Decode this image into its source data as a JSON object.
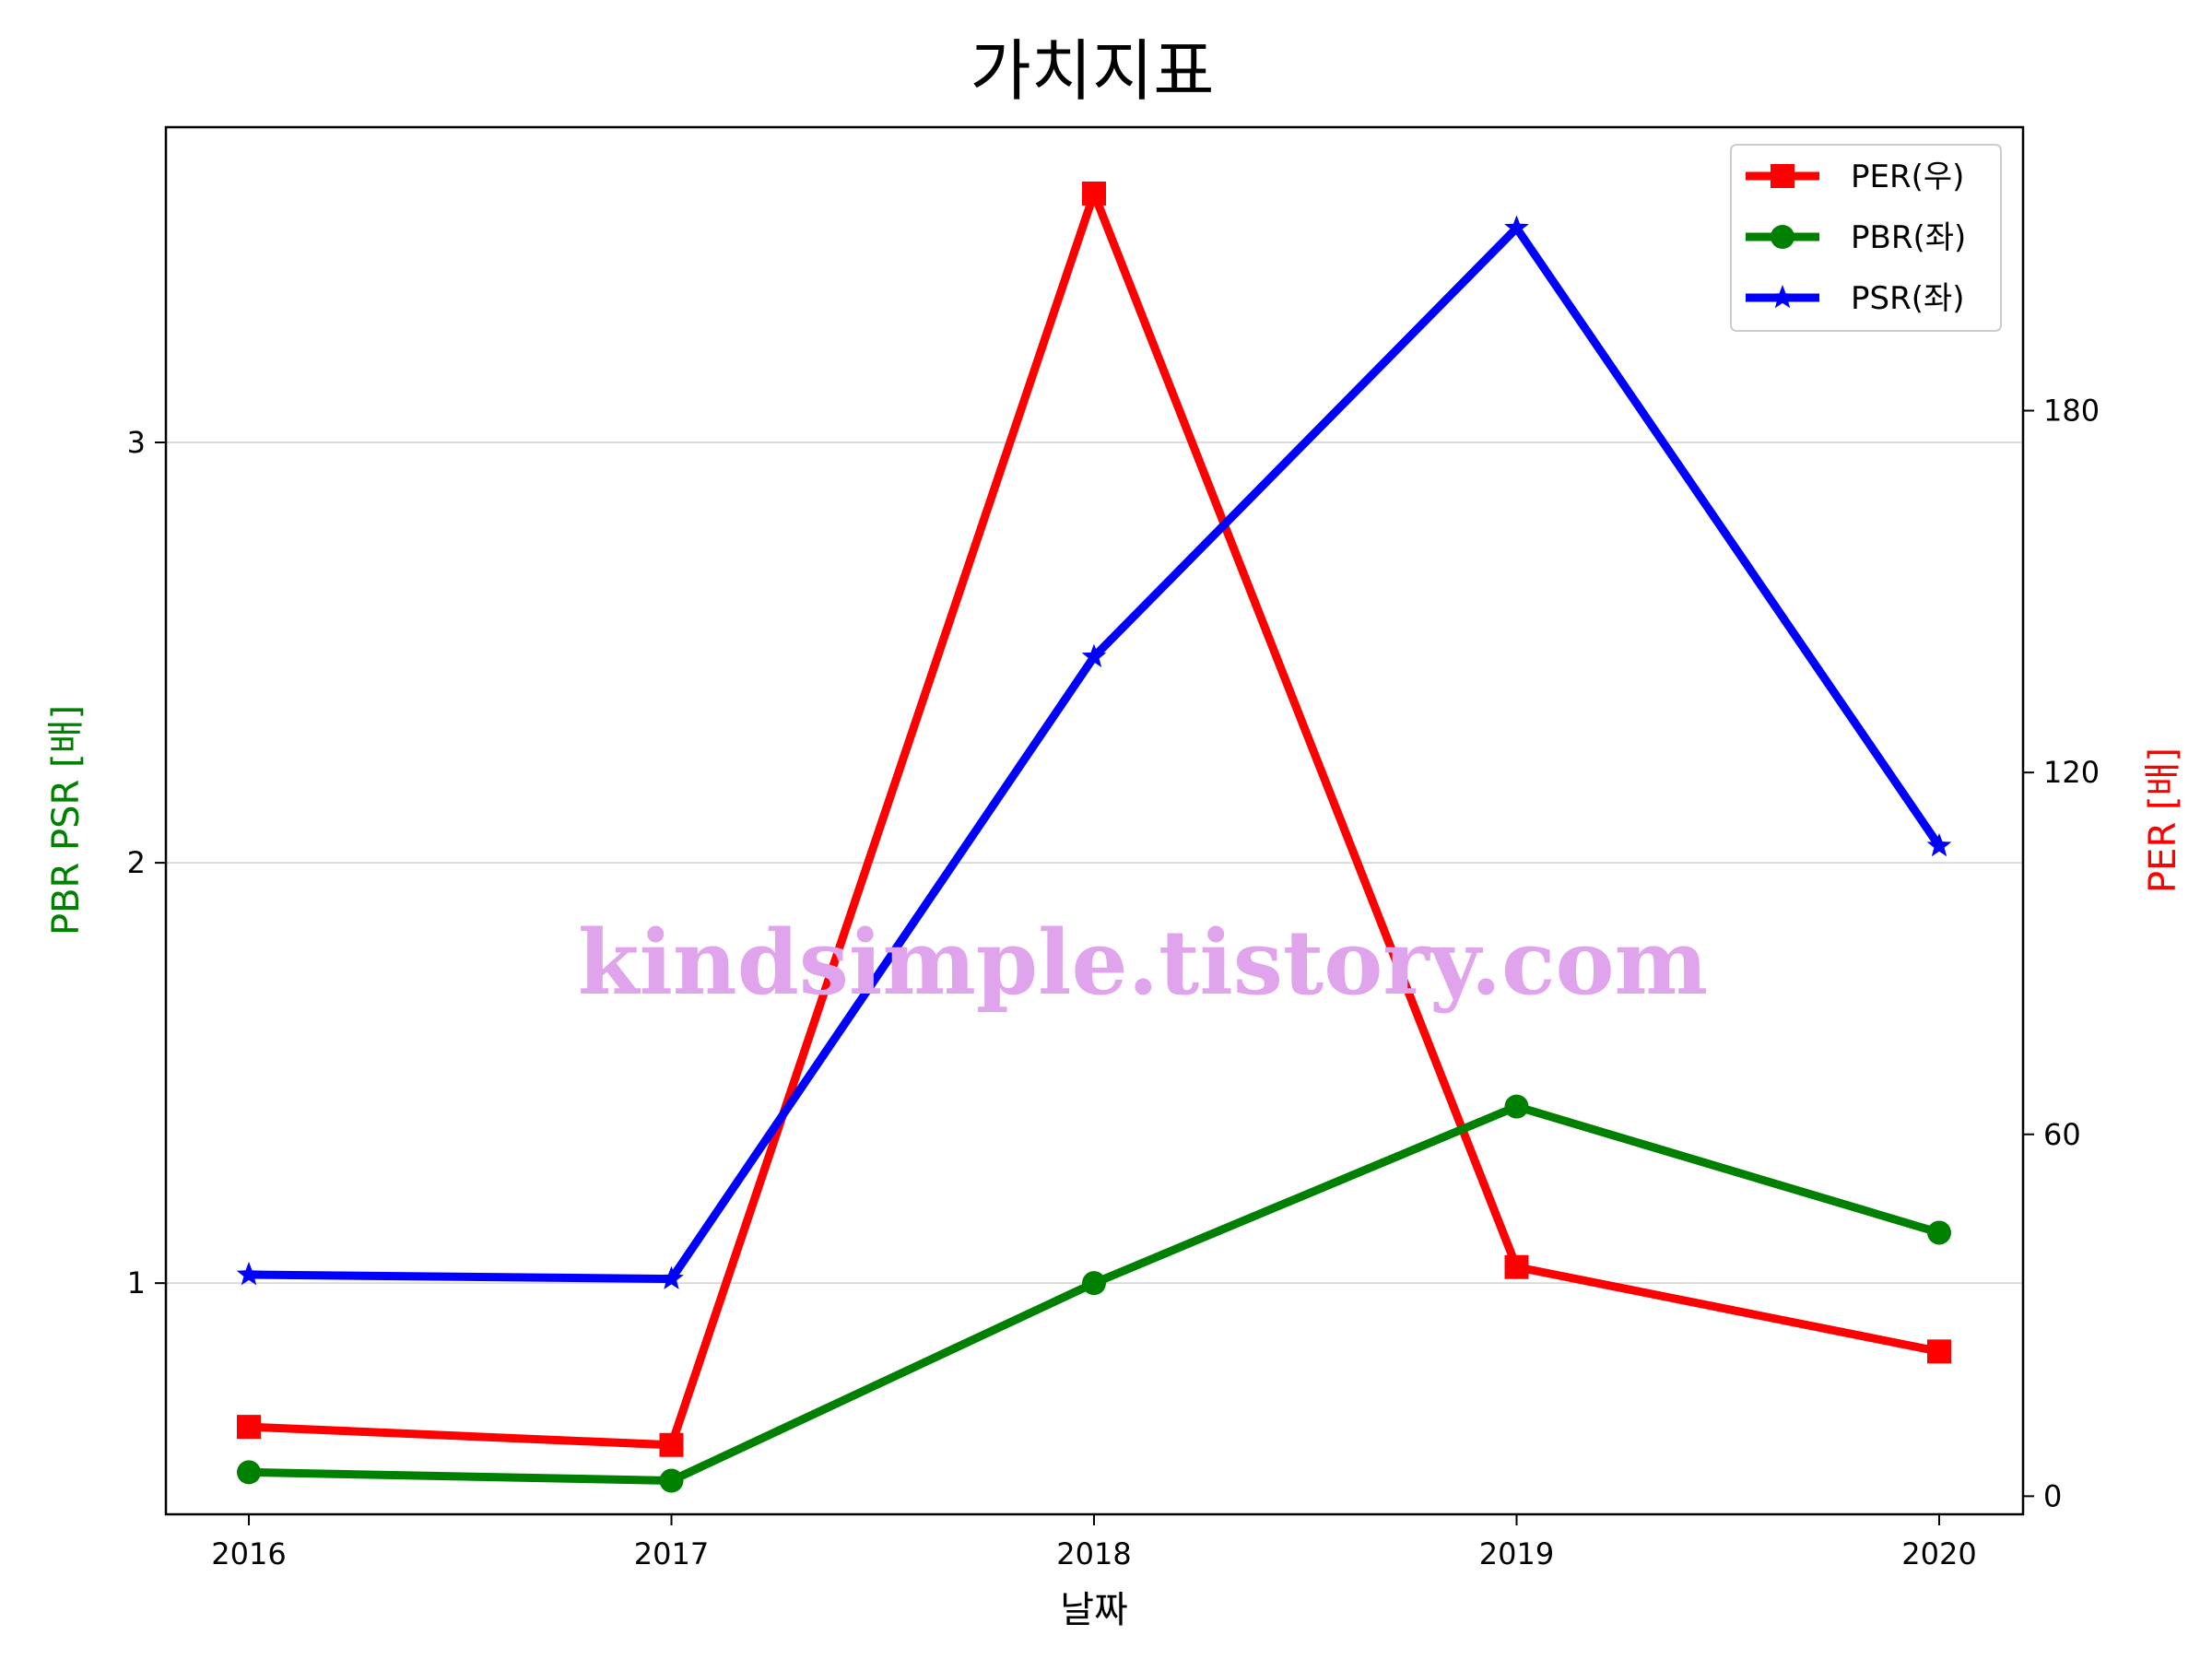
{
  "chart_data": {
    "type": "line",
    "title": "가치지표",
    "xlabel": "날짜",
    "ylabel_left": "PBR PSR [배]",
    "ylabel_right": "PER [배]",
    "categories": [
      "2016",
      "2017",
      "2018",
      "2019",
      "2020"
    ],
    "left_axis": {
      "ylim": [
        0.45,
        3.75
      ],
      "ticks": [
        1,
        2,
        3
      ],
      "tick_labels": [
        "1",
        "2",
        "3"
      ],
      "grid": true,
      "label_color": "#008000"
    },
    "right_axis": {
      "ylim": [
        -3,
        227
      ],
      "ticks": [
        0,
        60,
        120,
        180
      ],
      "tick_labels": [
        "0",
        "60",
        "120",
        "180"
      ],
      "label_color": "#ff0000"
    },
    "series": [
      {
        "name": "PER(우)",
        "axis": "right",
        "color": "#ff0000",
        "marker": "square",
        "values": [
          11.5,
          8.5,
          216,
          38,
          24
        ]
      },
      {
        "name": "PBR(좌)",
        "axis": "left",
        "color": "#008000",
        "marker": "circle",
        "values": [
          0.55,
          0.53,
          1.0,
          1.42,
          1.12
        ]
      },
      {
        "name": "PSR(좌)",
        "axis": "left",
        "color": "#0000ff",
        "marker": "star",
        "values": [
          1.02,
          1.01,
          2.49,
          3.51,
          2.04
        ]
      }
    ],
    "legend": {
      "position": "top-right",
      "entries": [
        "PER(우)",
        "PBR(좌)",
        "PSR(좌)"
      ]
    }
  },
  "watermark": "kindsimple.tistory.com"
}
